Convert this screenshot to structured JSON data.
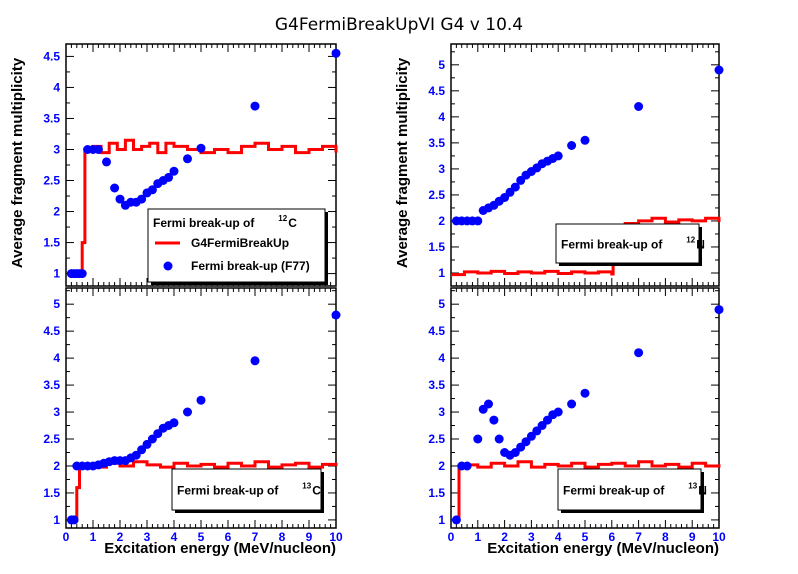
{
  "title": "G4FermiBreakUpVI G4 v 10.4",
  "colors": {
    "line": "#ff0000",
    "points": "#0000ff",
    "ticks": "#0000ff"
  },
  "chart_data": [
    {
      "type": "line",
      "panel": "top-left",
      "xlabel": "",
      "ylabel": "Average fragment multiplicity",
      "xlim": [
        0,
        10
      ],
      "ylim": [
        0.8,
        4.7
      ],
      "yticks": [
        "1",
        "1.5",
        "2",
        "2.5",
        "3",
        "3.5",
        "4",
        "4.5"
      ],
      "xticks": [],
      "legend_title_pre": "Fermi break-up of",
      "legend_title_sup": "12",
      "legend_title_post": "C",
      "legend": [
        "G4FermiBreakUp",
        "Fermi break-up (F77)"
      ],
      "line": {
        "name": "G4FermiBreakUp",
        "x": [
          0.25,
          0.5,
          0.6,
          0.7,
          1.0,
          1.3,
          1.6,
          1.9,
          2.2,
          2.5,
          2.8,
          3.1,
          3.4,
          3.7,
          4.0,
          4.5,
          5.0,
          5.5,
          6.0,
          6.5,
          7.0,
          7.5,
          8.0,
          8.5,
          9.0,
          9.5,
          10.0
        ],
        "y": [
          1.0,
          1.0,
          1.5,
          3.0,
          3.05,
          2.95,
          3.1,
          3.0,
          3.15,
          3.0,
          3.05,
          3.1,
          2.95,
          3.1,
          3.05,
          3.0,
          2.95,
          3.0,
          2.95,
          3.05,
          3.1,
          3.0,
          3.05,
          2.95,
          3.0,
          3.05,
          2.95
        ]
      },
      "points": {
        "name": "Fermi break-up (F77)",
        "x": [
          0.2,
          0.3,
          0.4,
          0.5,
          0.6,
          0.8,
          1.0,
          1.2,
          1.5,
          1.8,
          2.0,
          2.2,
          2.4,
          2.6,
          2.8,
          3.0,
          3.2,
          3.4,
          3.6,
          3.8,
          4.0,
          4.5,
          5.0,
          7.0,
          10.0
        ],
        "y": [
          1.0,
          1.0,
          1.0,
          1.0,
          1.0,
          3.0,
          3.0,
          3.0,
          2.8,
          2.38,
          2.2,
          2.1,
          2.15,
          2.15,
          2.2,
          2.3,
          2.35,
          2.45,
          2.5,
          2.55,
          2.65,
          2.85,
          3.02,
          3.7,
          4.55
        ]
      }
    },
    {
      "type": "line",
      "panel": "top-right",
      "xlabel": "",
      "ylabel": "Average fragment multiplicity",
      "xlim": [
        0,
        10
      ],
      "ylim": [
        0.75,
        5.4
      ],
      "yticks": [
        "1",
        "1.5",
        "2",
        "2.5",
        "3",
        "3.5",
        "4",
        "4.5",
        "5"
      ],
      "xticks": [],
      "legend_title_pre": "Fermi break-up of",
      "legend_title_sup": "12",
      "legend_title_post": "N",
      "line": {
        "name": "G4FermiBreakUp",
        "x": [
          0,
          0.5,
          1.0,
          1.5,
          2.0,
          2.5,
          3.0,
          3.5,
          4.0,
          4.5,
          5.0,
          5.5,
          6.0,
          6.05,
          6.5,
          7.0,
          7.5,
          8.0,
          8.5,
          9.0,
          9.5,
          10.0
        ],
        "y": [
          0.97,
          1.02,
          1.0,
          1.03,
          0.99,
          1.02,
          1.0,
          1.03,
          0.99,
          1.02,
          1.0,
          1.02,
          0.98,
          1.9,
          1.95,
          2.0,
          2.05,
          1.98,
          2.02,
          2.0,
          2.05,
          1.98
        ]
      },
      "points": {
        "name": "Fermi break-up (F77)",
        "x": [
          0.2,
          0.4,
          0.6,
          0.8,
          1.0,
          1.2,
          1.4,
          1.6,
          1.8,
          2.0,
          2.2,
          2.4,
          2.6,
          2.8,
          3.0,
          3.2,
          3.4,
          3.6,
          3.8,
          4.0,
          4.5,
          5.0,
          7.0,
          10.0
        ],
        "y": [
          2.0,
          2.0,
          2.0,
          2.0,
          2.0,
          2.2,
          2.25,
          2.3,
          2.38,
          2.45,
          2.55,
          2.65,
          2.78,
          2.88,
          2.95,
          3.02,
          3.1,
          3.15,
          3.2,
          3.25,
          3.45,
          3.55,
          4.2,
          4.9
        ]
      }
    },
    {
      "type": "line",
      "panel": "bottom-left",
      "xlabel": "Excitation energy (MeV/nucleon)",
      "ylabel": "",
      "xlim": [
        0,
        10
      ],
      "ylim": [
        0.85,
        5.3
      ],
      "yticks": [
        "1",
        "1.5",
        "2",
        "2.5",
        "3",
        "3.5",
        "4",
        "4.5",
        "5"
      ],
      "xticks": [
        "0",
        "1",
        "2",
        "3",
        "4",
        "5",
        "6",
        "7",
        "8",
        "9",
        "10"
      ],
      "legend_title_pre": "Fermi break-up of",
      "legend_title_sup": "13",
      "legend_title_post": "C",
      "line": {
        "name": "G4FermiBreakUp",
        "x": [
          0.25,
          0.4,
          0.5,
          0.6,
          1.0,
          1.5,
          2.0,
          2.5,
          3.0,
          3.5,
          4.0,
          4.5,
          5.0,
          5.5,
          6.0,
          6.5,
          7.0,
          7.5,
          8.0,
          8.5,
          9.0,
          9.5,
          10.0
        ],
        "y": [
          1.0,
          1.6,
          2.0,
          2.02,
          1.98,
          2.05,
          2.0,
          2.08,
          2.02,
          1.98,
          2.05,
          2.0,
          2.03,
          1.98,
          2.05,
          2.0,
          2.08,
          1.98,
          2.02,
          2.05,
          1.98,
          2.03,
          2.0
        ]
      },
      "points": {
        "name": "Fermi break-up (F77)",
        "x": [
          0.2,
          0.3,
          0.4,
          0.6,
          0.8,
          1.0,
          1.2,
          1.4,
          1.6,
          1.8,
          2.0,
          2.2,
          2.4,
          2.6,
          2.8,
          3.0,
          3.2,
          3.4,
          3.6,
          3.8,
          4.0,
          4.5,
          5.0,
          7.0,
          10.0
        ],
        "y": [
          1.0,
          1.0,
          2.0,
          2.0,
          2.0,
          2.0,
          2.02,
          2.05,
          2.08,
          2.1,
          2.1,
          2.1,
          2.15,
          2.2,
          2.3,
          2.4,
          2.5,
          2.6,
          2.7,
          2.75,
          2.8,
          3.0,
          3.22,
          3.95,
          4.8
        ]
      }
    },
    {
      "type": "line",
      "panel": "bottom-right",
      "xlabel": "Excitation energy (MeV/nucleon)",
      "ylabel": "",
      "xlim": [
        0,
        10
      ],
      "ylim": [
        0.85,
        5.3
      ],
      "yticks": [
        "1",
        "1.5",
        "2",
        "2.5",
        "3",
        "3.5",
        "4",
        "4.5",
        "5"
      ],
      "xticks": [
        "0",
        "1",
        "2",
        "3",
        "4",
        "5",
        "6",
        "7",
        "8",
        "9",
        "10"
      ],
      "legend_title_pre": "Fermi break-up of",
      "legend_title_sup": "13",
      "legend_title_post": "N",
      "line": {
        "name": "G4FermiBreakUp",
        "x": [
          0.25,
          0.3,
          0.5,
          1.0,
          1.5,
          2.0,
          2.5,
          3.0,
          3.5,
          4.0,
          4.5,
          5.0,
          5.5,
          6.0,
          6.5,
          7.0,
          7.5,
          8.0,
          8.5,
          9.0,
          9.5,
          10.0
        ],
        "y": [
          1.0,
          2.0,
          2.02,
          1.98,
          2.05,
          2.0,
          2.08,
          1.98,
          2.03,
          2.0,
          2.05,
          1.98,
          2.03,
          2.05,
          2.0,
          2.08,
          2.0,
          2.03,
          1.98,
          2.05,
          2.0,
          2.03
        ]
      },
      "points": {
        "name": "Fermi break-up (F77)",
        "x": [
          0.2,
          0.4,
          0.6,
          1.0,
          1.2,
          1.4,
          1.6,
          1.8,
          2.0,
          2.2,
          2.4,
          2.6,
          2.8,
          3.0,
          3.2,
          3.4,
          3.6,
          3.8,
          4.0,
          4.5,
          5.0,
          7.0,
          10.0
        ],
        "y": [
          1.0,
          2.0,
          2.0,
          2.5,
          3.05,
          3.15,
          2.85,
          2.5,
          2.25,
          2.2,
          2.25,
          2.35,
          2.45,
          2.55,
          2.65,
          2.75,
          2.85,
          2.95,
          3.0,
          3.15,
          3.35,
          4.1,
          4.9
        ]
      }
    }
  ]
}
